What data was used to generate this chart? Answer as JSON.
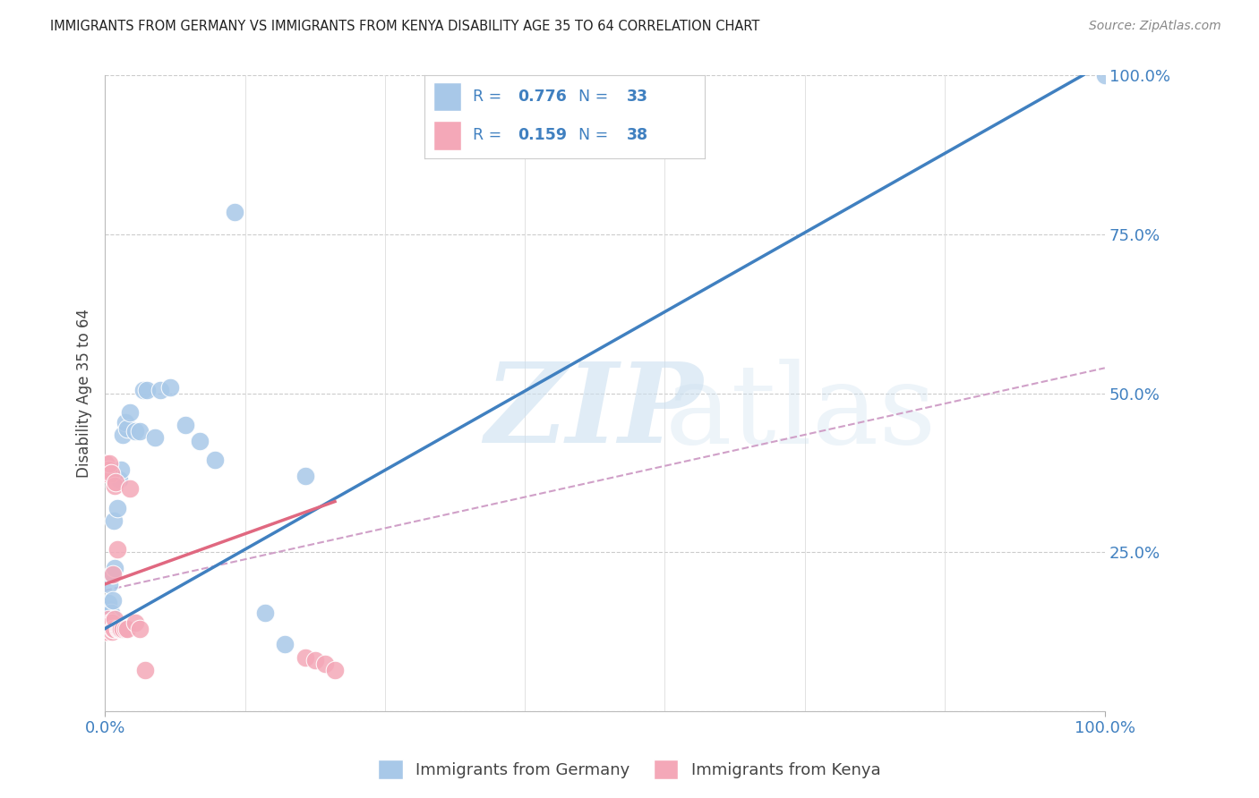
{
  "title": "IMMIGRANTS FROM GERMANY VS IMMIGRANTS FROM KENYA DISABILITY AGE 35 TO 64 CORRELATION CHART",
  "source": "Source: ZipAtlas.com",
  "ylabel": "Disability Age 35 to 64",
  "legend_label1": "Immigrants from Germany",
  "legend_label2": "Immigrants from Kenya",
  "R1": "0.776",
  "N1": "33",
  "R2": "0.159",
  "N2": "38",
  "color_germany": "#a8c8e8",
  "color_kenya": "#f4a8b8",
  "line_germany": "#4080c0",
  "line_kenya": "#e06880",
  "line_kenya_dashed": "#d0a0c8",
  "text_blue": "#4080c0",
  "xlim": [
    0.0,
    1.0
  ],
  "ylim": [
    0.0,
    1.0
  ],
  "germany_x": [
    0.001,
    0.002,
    0.003,
    0.003,
    0.004,
    0.005,
    0.006,
    0.007,
    0.008,
    0.009,
    0.01,
    0.012,
    0.014,
    0.016,
    0.018,
    0.02,
    0.022,
    0.025,
    0.03,
    0.035,
    0.038,
    0.042,
    0.05,
    0.055,
    0.065,
    0.08,
    0.095,
    0.11,
    0.13,
    0.16,
    0.18,
    0.2,
    1.0
  ],
  "germany_y": [
    0.145,
    0.155,
    0.16,
    0.17,
    0.2,
    0.14,
    0.155,
    0.215,
    0.175,
    0.3,
    0.225,
    0.32,
    0.365,
    0.38,
    0.435,
    0.455,
    0.445,
    0.47,
    0.44,
    0.44,
    0.505,
    0.505,
    0.43,
    0.505,
    0.51,
    0.45,
    0.425,
    0.395,
    0.785,
    0.155,
    0.105,
    0.37,
    1.0
  ],
  "kenya_x": [
    0.001,
    0.001,
    0.001,
    0.002,
    0.002,
    0.003,
    0.003,
    0.003,
    0.004,
    0.004,
    0.005,
    0.005,
    0.006,
    0.006,
    0.007,
    0.007,
    0.008,
    0.008,
    0.009,
    0.01,
    0.01,
    0.011,
    0.012,
    0.013,
    0.014,
    0.015,
    0.016,
    0.018,
    0.02,
    0.022,
    0.025,
    0.03,
    0.035,
    0.04,
    0.2,
    0.21,
    0.22,
    0.23
  ],
  "kenya_y": [
    0.375,
    0.39,
    0.13,
    0.14,
    0.125,
    0.38,
    0.13,
    0.145,
    0.39,
    0.13,
    0.14,
    0.135,
    0.375,
    0.13,
    0.14,
    0.125,
    0.13,
    0.215,
    0.13,
    0.145,
    0.355,
    0.36,
    0.255,
    0.13,
    0.13,
    0.13,
    0.13,
    0.13,
    0.13,
    0.13,
    0.35,
    0.14,
    0.13,
    0.065,
    0.085,
    0.08,
    0.075,
    0.065
  ],
  "grid_ticks": [
    0.0,
    0.25,
    0.5,
    0.75,
    1.0
  ]
}
